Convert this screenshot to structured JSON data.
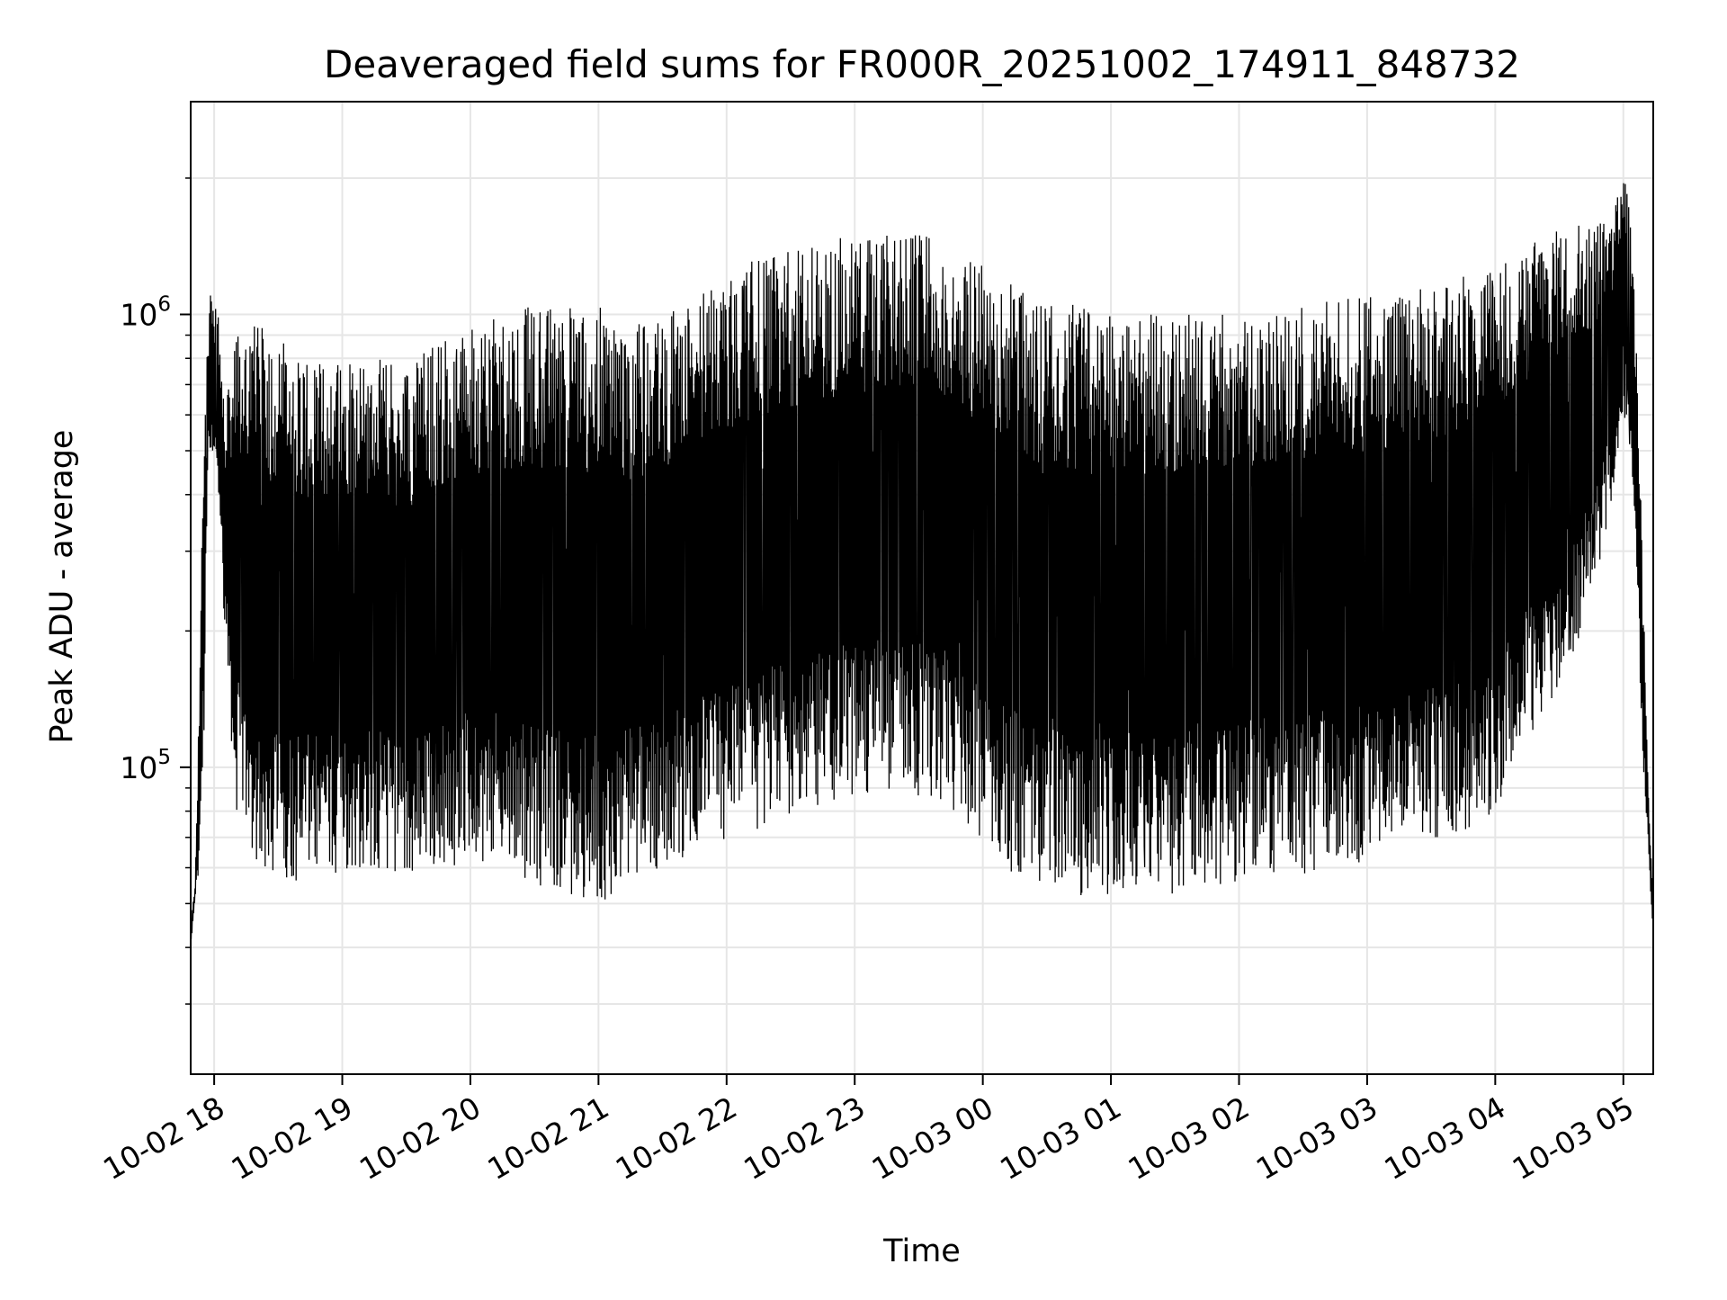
{
  "chart_data": {
    "type": "line",
    "title": "Deaveraged field sums for FR000R_20251002_174911_848732",
    "xlabel": "Time",
    "ylabel": "Peak ADU - average",
    "yscale": "log",
    "xlim": [
      "2025-10-02 17:49",
      "2025-10-03 05:14"
    ],
    "ylim": [
      21000,
      2950000
    ],
    "grid": true,
    "line_color": "#000000",
    "grid_color": "#e6e6e6",
    "x_ticks": [
      {
        "t": "2025-10-02 18:00",
        "label": "10-02 18"
      },
      {
        "t": "2025-10-02 19:00",
        "label": "10-02 19"
      },
      {
        "t": "2025-10-02 20:00",
        "label": "10-02 20"
      },
      {
        "t": "2025-10-02 21:00",
        "label": "10-02 21"
      },
      {
        "t": "2025-10-02 22:00",
        "label": "10-02 22"
      },
      {
        "t": "2025-10-02 23:00",
        "label": "10-02 23"
      },
      {
        "t": "2025-10-03 00:00",
        "label": "10-03 00"
      },
      {
        "t": "2025-10-03 01:00",
        "label": "10-03 01"
      },
      {
        "t": "2025-10-03 02:00",
        "label": "10-03 02"
      },
      {
        "t": "2025-10-03 03:00",
        "label": "10-03 03"
      },
      {
        "t": "2025-10-03 04:00",
        "label": "10-03 04"
      },
      {
        "t": "2025-10-03 05:00",
        "label": "10-03 05"
      }
    ],
    "y_ticks": [
      {
        "value": 100000,
        "base": "10",
        "exp": "5"
      },
      {
        "value": 1000000,
        "base": "10",
        "exp": "6"
      }
    ],
    "series": [
      {
        "x": [
          "2025-10-02 17:49",
          "2025-10-02 17:51",
          "2025-10-02 17:53",
          "2025-10-02 17:55",
          "2025-10-02 17:57",
          "2025-10-02 17:59",
          "2025-10-02 18:02",
          "2025-10-02 18:05",
          "2025-10-02 18:10",
          "2025-10-02 18:15",
          "2025-10-02 18:20",
          "2025-10-02 18:30",
          "2025-10-02 18:40",
          "2025-10-02 18:50",
          "2025-10-02 19:00",
          "2025-10-02 19:15",
          "2025-10-02 19:30",
          "2025-10-02 19:45",
          "2025-10-02 20:00",
          "2025-10-02 20:15",
          "2025-10-02 20:30",
          "2025-10-02 20:45",
          "2025-10-02 21:00",
          "2025-10-02 21:15",
          "2025-10-02 21:30",
          "2025-10-02 21:45",
          "2025-10-02 22:00",
          "2025-10-02 22:15",
          "2025-10-02 22:30",
          "2025-10-02 22:45",
          "2025-10-02 23:00",
          "2025-10-02 23:15",
          "2025-10-02 23:30",
          "2025-10-02 23:45",
          "2025-10-03 00:00",
          "2025-10-03 00:15",
          "2025-10-03 00:30",
          "2025-10-03 00:45",
          "2025-10-03 01:00",
          "2025-10-03 01:15",
          "2025-10-03 01:30",
          "2025-10-03 01:45",
          "2025-10-03 02:00",
          "2025-10-03 02:15",
          "2025-10-03 02:30",
          "2025-10-03 02:45",
          "2025-10-03 03:00",
          "2025-10-03 03:15",
          "2025-10-03 03:30",
          "2025-10-03 03:45",
          "2025-10-03 04:00",
          "2025-10-03 04:15",
          "2025-10-03 04:30",
          "2025-10-03 04:45",
          "2025-10-03 04:55",
          "2025-10-03 05:00",
          "2025-10-03 05:03",
          "2025-10-03 05:06",
          "2025-10-03 05:09",
          "2025-10-03 05:12",
          "2025-10-03 05:14"
        ],
        "upper": [
          45000,
          55000,
          140000,
          600000,
          950000,
          1200000,
          1000000,
          600000,
          900000,
          1000000,
          950000,
          900000,
          850000,
          800000,
          850000,
          800000,
          780000,
          900000,
          950000,
          1000000,
          1050000,
          1050000,
          1050000,
          950000,
          1000000,
          1100000,
          1200000,
          1350000,
          1400000,
          1450000,
          1500000,
          1500000,
          1500000,
          1450000,
          1300000,
          1150000,
          1050000,
          1050000,
          1050000,
          1000000,
          1000000,
          1000000,
          1000000,
          1050000,
          1050000,
          1100000,
          1100000,
          1150000,
          1150000,
          1250000,
          1300000,
          1450000,
          1550000,
          1600000,
          1650000,
          2200000,
          1800000,
          900000,
          300000,
          80000,
          50000
        ],
        "lower": [
          40000,
          50000,
          55000,
          100000,
          450000,
          500000,
          400000,
          200000,
          80000,
          70000,
          60000,
          58000,
          55000,
          56000,
          58000,
          60000,
          55000,
          58000,
          62000,
          60000,
          55000,
          52000,
          50000,
          55000,
          60000,
          65000,
          68000,
          72000,
          78000,
          82000,
          85000,
          86000,
          85000,
          80000,
          65000,
          58000,
          55000,
          52000,
          52000,
          54000,
          52000,
          54000,
          56000,
          58000,
          58000,
          60000,
          62000,
          65000,
          68000,
          72000,
          78000,
          110000,
          150000,
          220000,
          400000,
          600000,
          500000,
          300000,
          100000,
          60000,
          40000
        ]
      }
    ]
  }
}
